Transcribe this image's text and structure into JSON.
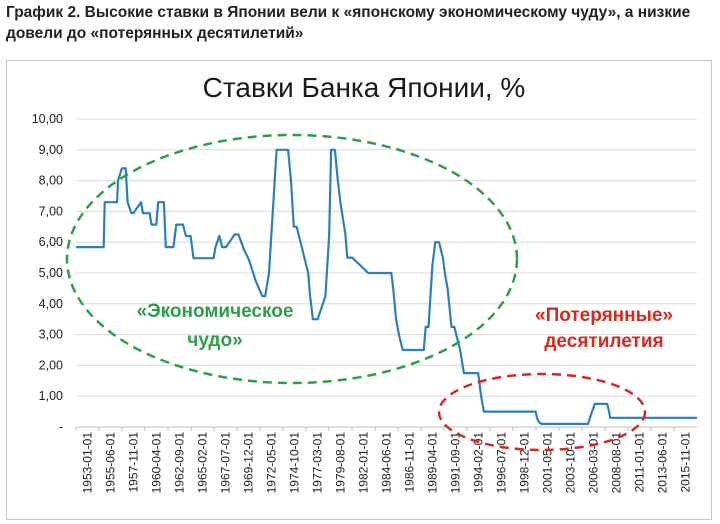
{
  "caption": "График 2. Высокие ставки в Японии вели к «японскому экономическому чуду», а низкие довели до «потерянных десятилетий»",
  "colors": {
    "line": "#2e7fb8",
    "green_ellipse": "#2e9e4b",
    "red_ellipse": "#d42a1f",
    "grid": "#d9d9d9"
  },
  "chart_data": {
    "type": "line",
    "title": "Ставки Банка Японии, %",
    "ylim": [
      0,
      10
    ],
    "yticks": [
      "-",
      "1,00",
      "2,00",
      "3,00",
      "4,00",
      "5,00",
      "6,00",
      "7,00",
      "8,00",
      "9,00",
      "10,00"
    ],
    "xlim": [
      1953.0,
      2018.0
    ],
    "xticks": [
      "1953-01-01",
      "1955-06-01",
      "1957-11-01",
      "1960-04-01",
      "1962-09-01",
      "1965-02-01",
      "1967-07-01",
      "1969-12-01",
      "1972-05-01",
      "1974-10-01",
      "1977-03-01",
      "1979-08-01",
      "1982-01-01",
      "1984-06-01",
      "1986-11-01",
      "1989-04-01",
      "1991-09-01",
      "1994-02-01",
      "1996-07-01",
      "1998-12-01",
      "2001-05-01",
      "2003-10-01",
      "2006-03-01",
      "2008-08-01",
      "2011-01-01",
      "2013-06-01",
      "2015-11-01"
    ],
    "grid": true,
    "series": [
      {
        "x": [
          1953.0,
          1955.9,
          1956.0,
          1957.3,
          1957.4,
          1957.8,
          1958.2,
          1958.4,
          1958.8,
          1959.0,
          1959.8,
          1960.0,
          1960.7,
          1960.9,
          1961.4,
          1961.6,
          1962.2,
          1962.4,
          1963.2,
          1963.5,
          1964.2,
          1964.5,
          1965.0,
          1965.3,
          1965.5,
          1967.4,
          1967.6,
          1968.0,
          1968.3,
          1968.7,
          1969.6,
          1970.0,
          1970.3,
          1970.6,
          1971.0,
          1971.3,
          1971.8,
          1972.5,
          1972.8,
          1973.2,
          1973.4,
          1973.6,
          1973.8,
          1974.0,
          1975.2,
          1975.5,
          1975.8,
          1976.1,
          1977.3,
          1977.5,
          1977.8,
          1978.1,
          1978.3,
          1979.1,
          1979.3,
          1979.5,
          1979.7,
          1980.1,
          1980.4,
          1980.7,
          1981.2,
          1981.4,
          1981.9,
          1983.6,
          1983.8,
          1986.0,
          1986.2,
          1986.5,
          1986.8,
          1987.2,
          1989.4,
          1989.6,
          1989.9,
          1990.3,
          1990.6,
          1991.0,
          1991.4,
          1991.6,
          1991.9,
          1992.3,
          1992.6,
          1993.2,
          1993.6,
          1995.1,
          1995.4,
          1995.7,
          2001.1,
          2001.3,
          2001.5,
          2001.7,
          2006.6,
          2006.9,
          2007.3,
          2008.6,
          2008.8,
          2008.9,
          2018.0
        ],
        "y": [
          5.84,
          5.84,
          7.3,
          7.3,
          8.0,
          8.4,
          8.4,
          7.3,
          6.94,
          6.94,
          7.3,
          6.94,
          6.94,
          6.57,
          6.57,
          7.3,
          7.3,
          5.84,
          5.84,
          6.57,
          6.57,
          6.2,
          6.2,
          5.48,
          5.48,
          5.48,
          5.84,
          6.2,
          5.84,
          5.84,
          6.25,
          6.25,
          6.0,
          5.75,
          5.5,
          5.25,
          4.75,
          4.25,
          4.25,
          5.0,
          6.0,
          7.0,
          8.0,
          9.0,
          9.0,
          8.0,
          6.5,
          6.5,
          5.0,
          4.25,
          3.5,
          3.5,
          3.5,
          4.25,
          5.25,
          6.25,
          9.0,
          9.0,
          8.0,
          7.25,
          6.25,
          5.5,
          5.5,
          5.0,
          5.0,
          5.0,
          4.5,
          3.5,
          3.0,
          2.5,
          2.5,
          3.25,
          3.25,
          5.25,
          6.0,
          6.0,
          5.5,
          5.0,
          4.5,
          3.25,
          3.25,
          2.5,
          1.75,
          1.75,
          1.0,
          0.5,
          0.5,
          0.25,
          0.15,
          0.1,
          0.1,
          0.4,
          0.75,
          0.75,
          0.5,
          0.3,
          0.3
        ]
      }
    ],
    "annotations": [
      {
        "lines": [
          "«Экономическое",
          "чудо»"
        ],
        "color": "green"
      },
      {
        "lines": [
          "«Потерянные»",
          "десятилетия"
        ],
        "color": "red"
      }
    ]
  }
}
